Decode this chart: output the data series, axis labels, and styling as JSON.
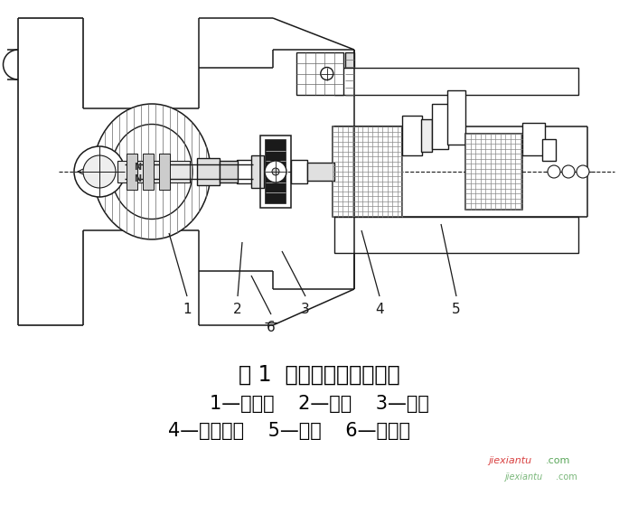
{
  "bg_color": "#ffffff",
  "fig_width": 7.06,
  "fig_height": 5.59,
  "dpi": 100,
  "title_line": "图 1  上连接头的设计结构",
  "label_line1": "1—接线头    2—垫片    3—螺杆",
  "label_line2": "4—接线头组    5—基座    6—导线头",
  "title_fontsize": 17,
  "label_fontsize": 15,
  "title_color": "#000000",
  "label_color": "#000000",
  "wm_color1": "#cc0000",
  "wm_color2": "#228822",
  "dark": "#1a1a1a",
  "gray1": "#cccccc",
  "gray2": "#aaaaaa",
  "gray3": "#888888",
  "hatch_color": "#666666"
}
